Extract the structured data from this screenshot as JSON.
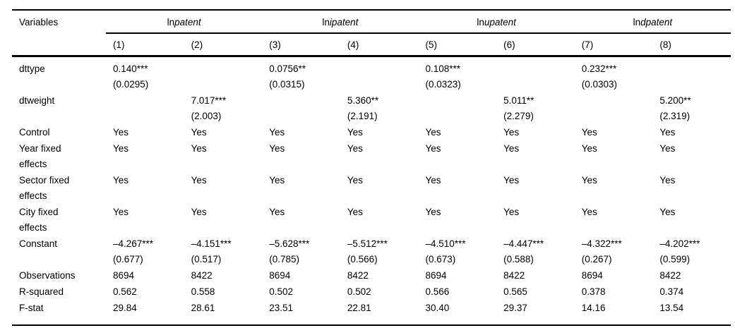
{
  "table": {
    "variables_header": "Variables",
    "groups": [
      {
        "prefix": "ln",
        "name": "patent"
      },
      {
        "prefix": "ln",
        "name": "ipatent"
      },
      {
        "prefix": "ln",
        "name": "upatent"
      },
      {
        "prefix": "ln",
        "name": "dpatent"
      }
    ],
    "column_numbers": [
      "(1)",
      "(2)",
      "(3)",
      "(4)",
      "(5)",
      "(6)",
      "(7)",
      "(8)"
    ],
    "rows": [
      {
        "label": "dttype",
        "cells": [
          "0.140***\n(0.0295)",
          "",
          "0.0756**\n(0.0315)",
          "",
          "0.108***\n(0.0323)",
          "",
          "0.232***\n(0.0303)",
          ""
        ]
      },
      {
        "label": "dtweight",
        "cells": [
          "",
          "7.017***\n(2.003)",
          "",
          "5.360**\n(2.191)",
          "",
          "5.011**\n(2.279)",
          "",
          "5.200**\n(2.319)"
        ]
      },
      {
        "label": "Control",
        "cells": [
          "Yes",
          "Yes",
          "Yes",
          "Yes",
          "Yes",
          "Yes",
          "Yes",
          "Yes"
        ]
      },
      {
        "label": "Year fixed\neffects",
        "cells": [
          "Yes",
          "Yes",
          "Yes",
          "Yes",
          "Yes",
          "Yes",
          "Yes",
          "Yes"
        ]
      },
      {
        "label": "Sector fixed\neffects",
        "cells": [
          "Yes",
          "Yes",
          "Yes",
          "Yes",
          "Yes",
          "Yes",
          "Yes",
          "Yes"
        ]
      },
      {
        "label": "City fixed\neffects",
        "cells": [
          "Yes",
          "Yes",
          "Yes",
          "Yes",
          "Yes",
          "Yes",
          "Yes",
          "Yes"
        ]
      },
      {
        "label": "Constant",
        "cells": [
          "–4.267***\n(0.677)",
          "–4.151***\n(0.517)",
          "–5.628***\n(0.785)",
          "–5.512***\n(0.566)",
          "–4.510***\n(0.673)",
          "–4.447***\n(0.588)",
          "–4.322***\n(0.267)",
          "–4.202***\n(0.599)"
        ]
      },
      {
        "label": "Observations",
        "cells": [
          "8694",
          "8422",
          "8694",
          "8422",
          "8694",
          "8422",
          "8694",
          "8422"
        ]
      },
      {
        "label": "R-squared",
        "cells": [
          "0.562",
          "0.558",
          "0.502",
          "0.502",
          "0.566",
          "0.565",
          "0.378",
          "0.374"
        ]
      },
      {
        "label": "F-stat",
        "cells": [
          "29.84",
          "28.61",
          "23.51",
          "22.81",
          "30.40",
          "29.37",
          "14.16",
          "13.54"
        ]
      }
    ]
  }
}
